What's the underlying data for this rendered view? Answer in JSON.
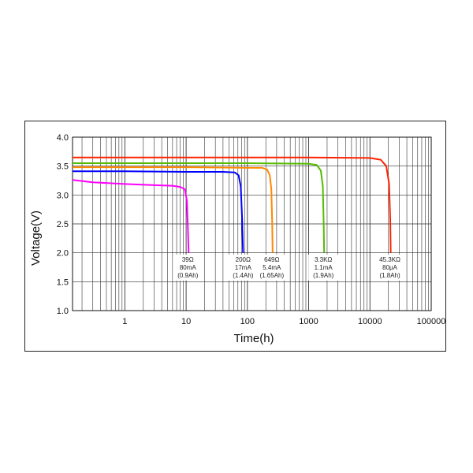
{
  "chart_data": {
    "type": "line",
    "xlabel": "Time(h)",
    "ylabel": "Voltage(V)",
    "x_scale": "log",
    "xlim": [
      0.14,
      100000
    ],
    "ylim": [
      1.0,
      4.0
    ],
    "grid": true,
    "xticks": [
      {
        "value": 1,
        "label": "1"
      },
      {
        "value": 10,
        "label": "10"
      },
      {
        "value": 100,
        "label": "100"
      },
      {
        "value": 1000,
        "label": "1000"
      },
      {
        "value": 10000,
        "label": "10000"
      },
      {
        "value": 100000,
        "label": "100000"
      }
    ],
    "yticks": [
      {
        "value": 4.0,
        "label": "4.0"
      },
      {
        "value": 3.5,
        "label": "3.5"
      },
      {
        "value": 3.0,
        "label": "3.0"
      },
      {
        "value": 2.5,
        "label": "2.5"
      },
      {
        "value": 2.0,
        "label": "2.0"
      },
      {
        "value": 1.5,
        "label": "1.5"
      },
      {
        "value": 1.0,
        "label": "1.0"
      }
    ],
    "series": [
      {
        "color": "#ff00ff",
        "annotation": [
          "39Ω",
          "80mA",
          "(0.9Ah)"
        ],
        "x": [
          0.14,
          0.3,
          1,
          3,
          6,
          8,
          9.5,
          10.3,
          10.7,
          11
        ],
        "y": [
          3.26,
          3.22,
          3.19,
          3.17,
          3.16,
          3.14,
          3.1,
          2.9,
          2.4,
          2.0
        ]
      },
      {
        "color": "#0000ff",
        "annotation": [
          "200Ω",
          "17mA",
          "(1.4Ah)"
        ],
        "x": [
          0.14,
          1,
          10,
          40,
          62,
          72,
          78,
          82,
          85
        ],
        "y": [
          3.41,
          3.41,
          3.4,
          3.4,
          3.39,
          3.34,
          3.15,
          2.6,
          2.0
        ]
      },
      {
        "color": "#ff8800",
        "annotation": [
          "649Ω",
          "5.4mA",
          "(1.65Ah)"
        ],
        "x": [
          0.14,
          10,
          100,
          175,
          210,
          232,
          246,
          254,
          258
        ],
        "y": [
          3.48,
          3.48,
          3.47,
          3.47,
          3.44,
          3.34,
          3.1,
          2.5,
          2.0
        ]
      },
      {
        "color": "#55bb00",
        "annotation": [
          "3.3KΩ",
          "1.1mA",
          "(1.9Ah)"
        ],
        "x": [
          0.14,
          10,
          100,
          1000,
          1350,
          1580,
          1700,
          1760,
          1790
        ],
        "y": [
          3.55,
          3.55,
          3.55,
          3.54,
          3.52,
          3.42,
          3.15,
          2.5,
          2.0
        ]
      },
      {
        "color": "#ff2200",
        "annotation": [
          "45.3KΩ",
          "80μA",
          "(1.8Ah)"
        ],
        "x": [
          0.14,
          10,
          100,
          1000,
          10000,
          15000,
          18500,
          20500,
          21400,
          21800
        ],
        "y": [
          3.65,
          3.65,
          3.65,
          3.65,
          3.64,
          3.61,
          3.5,
          3.2,
          2.6,
          2.0
        ]
      }
    ]
  }
}
